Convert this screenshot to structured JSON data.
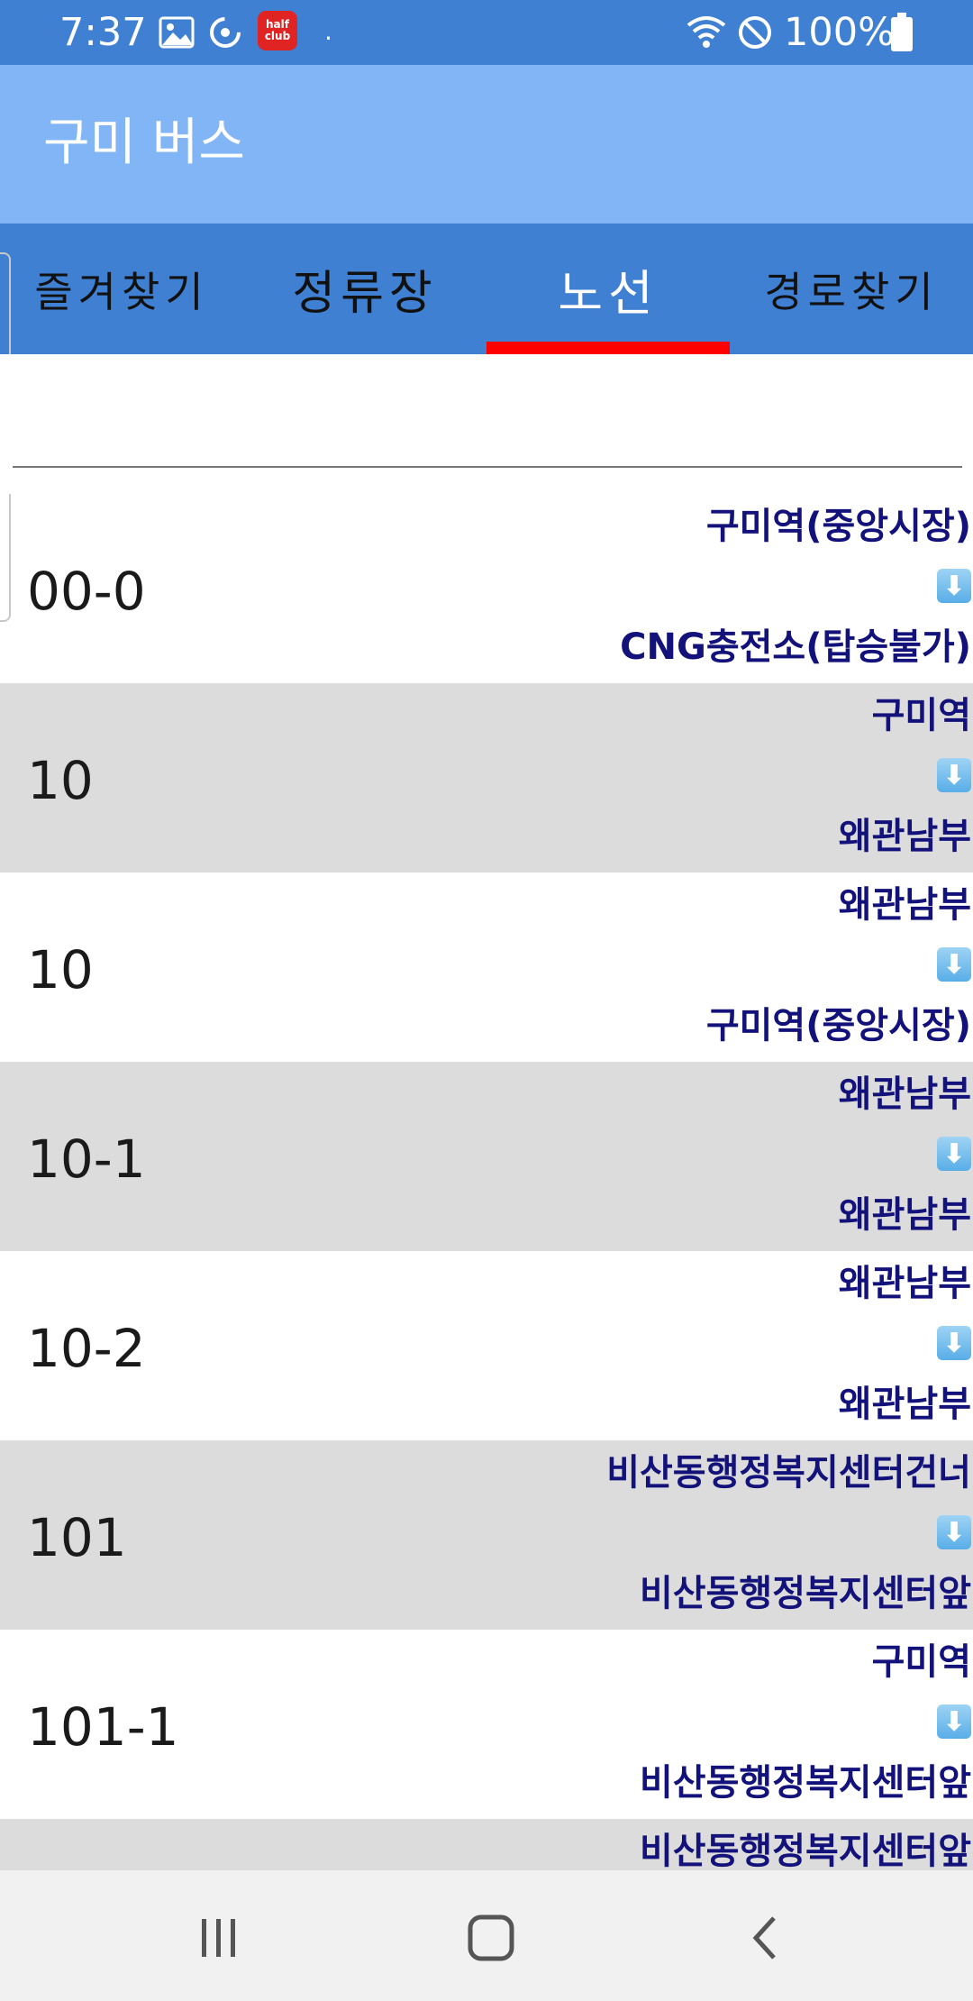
{
  "status_bar": {
    "time": "7:37",
    "halfclub_label_top": "half",
    "halfclub_label_bottom": "club",
    "dot": "·",
    "battery": "100%"
  },
  "app_bar": {
    "title": "구미 버스"
  },
  "tabs": [
    {
      "label": "즐겨찾기",
      "active": false
    },
    {
      "label": "정류장",
      "active": false
    },
    {
      "label": "노선",
      "active": true
    },
    {
      "label": "경로찾기",
      "active": false
    }
  ],
  "search": {
    "value": "",
    "placeholder": ""
  },
  "arrow_glyph": "⬇",
  "routes": [
    {
      "number": "00-0",
      "from": "구미역(중앙시장)",
      "to": "CNG충전소(탑승불가)"
    },
    {
      "number": "10",
      "from": "구미역",
      "to": "왜관남부"
    },
    {
      "number": "10",
      "from": "왜관남부",
      "to": "구미역(중앙시장)"
    },
    {
      "number": "10-1",
      "from": "왜관남부",
      "to": "왜관남부"
    },
    {
      "number": "10-2",
      "from": "왜관남부",
      "to": "왜관남부"
    },
    {
      "number": "101",
      "from": "비산동행정복지센터건너",
      "to": "비산동행정복지센터앞"
    },
    {
      "number": "101-1",
      "from": "구미역",
      "to": "비산동행정복지센터앞"
    },
    {
      "number": "",
      "from": "비산동행정복지센터앞",
      "to": ""
    }
  ],
  "colors": {
    "status_bar": "#4080d2",
    "app_bar": "#82b5f5",
    "tab_bar": "#4080d2",
    "tab_indicator": "#ff0000",
    "row_alt": "#dcdcdc",
    "stop_text": "#12127a"
  },
  "icons": {
    "status": [
      "gallery-icon",
      "sync-icon",
      "halfclub-app-icon",
      "wifi-icon",
      "do-not-disturb-icon",
      "battery-icon"
    ],
    "nav": [
      "recents-icon",
      "home-icon",
      "back-icon"
    ]
  }
}
